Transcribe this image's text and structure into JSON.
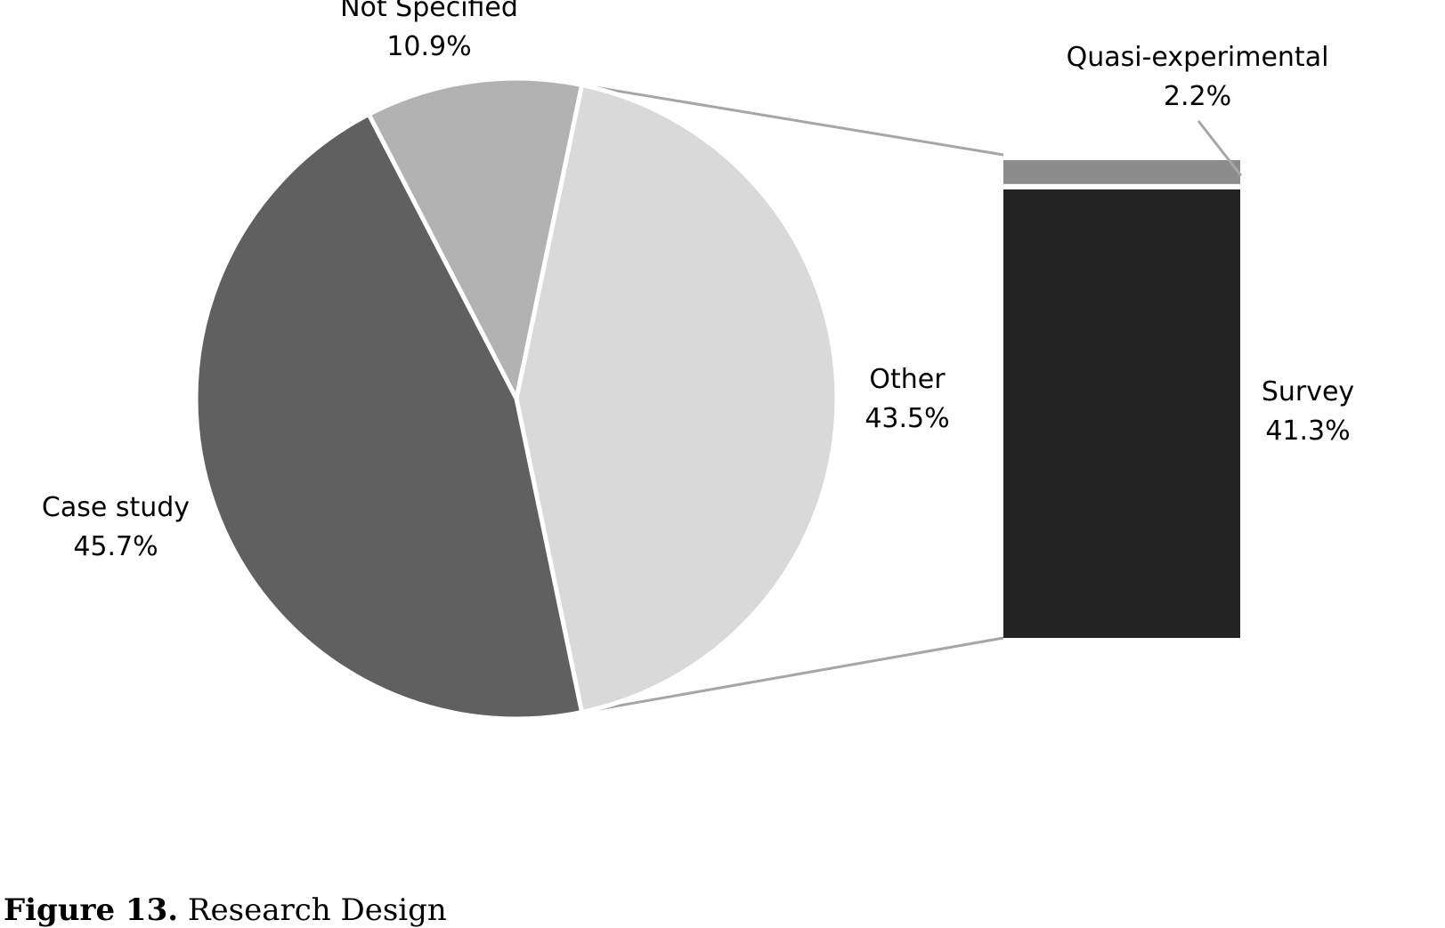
{
  "chart_data": {
    "type": "pie",
    "subtype": "bar-of-pie",
    "pie": {
      "slices": [
        {
          "label": "Not Specified",
          "value": 10.9,
          "display": "10.9%",
          "color": "#b2b2b2"
        },
        {
          "label": "Other",
          "value": 43.5,
          "display": "43.5%",
          "color": "#d9d9d9"
        },
        {
          "label": "Case study",
          "value": 45.7,
          "display": "45.7%",
          "color": "#606060"
        }
      ]
    },
    "bar": {
      "parent": "Other",
      "segments": [
        {
          "label": "Quasi-experimental",
          "value": 2.2,
          "display": "2.2%",
          "color": "#8c8c8c"
        },
        {
          "label": "Survey",
          "value": 41.3,
          "display": "41.3%",
          "color": "#242424"
        }
      ]
    },
    "connector_color": "#a6a6a6",
    "legend": "none"
  },
  "caption": {
    "label": "Figure 13.",
    "text": "Research Design"
  }
}
